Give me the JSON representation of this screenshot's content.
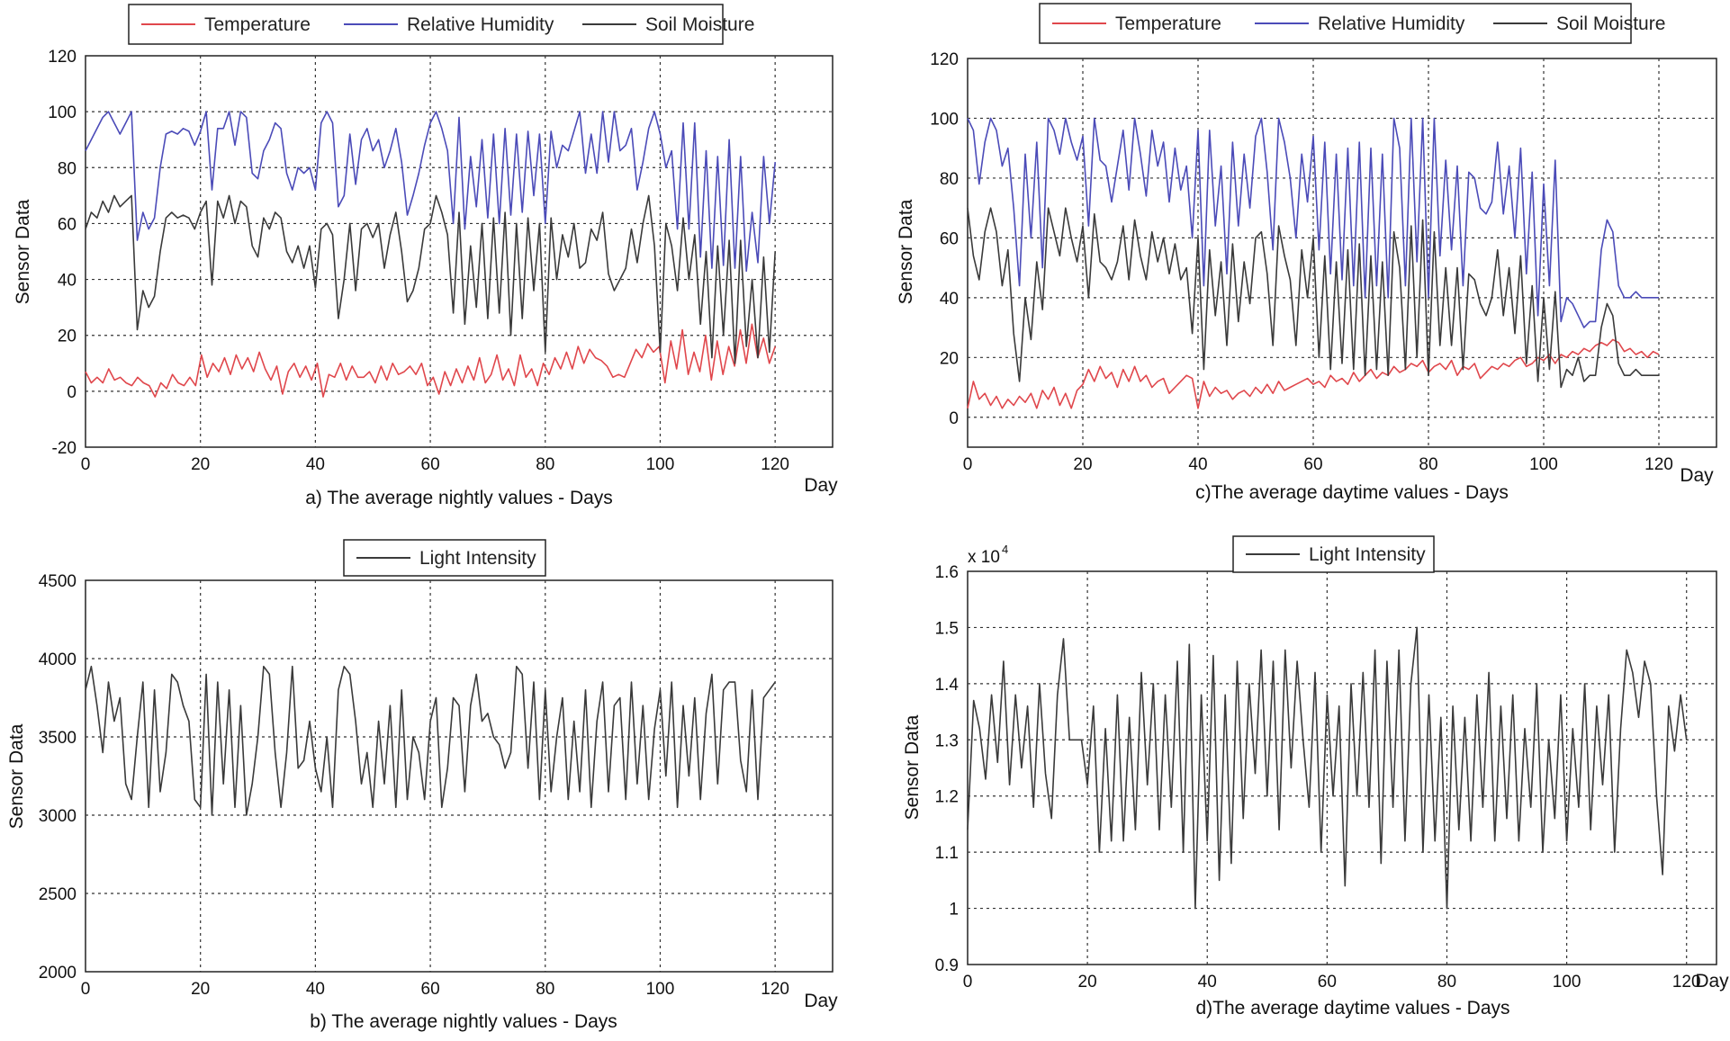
{
  "colors": {
    "temperature": "#e0474c",
    "humidity": "#4b4bb8",
    "soil": "#3a3a3a",
    "light": "#3a3a3a",
    "grid": "#333333"
  },
  "chart_data": [
    {
      "type": "line",
      "caption": "a) The average  nightly values - Days",
      "xlabel": "Day",
      "ylabel": "Sensor Data",
      "xlim": [
        0,
        130
      ],
      "ylim": [
        -20,
        120
      ],
      "xticks": [
        0,
        20,
        40,
        60,
        80,
        100,
        120
      ],
      "yticks": [
        -20,
        0,
        20,
        40,
        60,
        80,
        100,
        120
      ],
      "grid": true,
      "legend_position": "top",
      "series": [
        {
          "name": "Temperature",
          "values": [
            7,
            3,
            5,
            3,
            8,
            4,
            5,
            3,
            2,
            5,
            3,
            2,
            -2,
            3,
            1,
            6,
            3,
            2,
            5,
            2,
            13,
            5,
            10,
            7,
            12,
            6,
            13,
            8,
            12,
            7,
            14,
            8,
            4,
            9,
            -1,
            7,
            10,
            5,
            9,
            4,
            10,
            -2,
            6,
            5,
            10,
            4,
            9,
            5,
            5,
            7,
            3,
            9,
            4,
            10,
            6,
            7,
            9,
            6,
            10,
            2,
            5,
            -1,
            7,
            2,
            8,
            3,
            9,
            4,
            12,
            3,
            6,
            13,
            4,
            8,
            2,
            13,
            5,
            8,
            2,
            10,
            6,
            12,
            8,
            14,
            8,
            16,
            10,
            15,
            12,
            11,
            9,
            5,
            6,
            5,
            10,
            15,
            12,
            17,
            14,
            16,
            3,
            18,
            8,
            22,
            6,
            14,
            7,
            20,
            4,
            18,
            6,
            16,
            9,
            22,
            10,
            24,
            12,
            19,
            10,
            16
          ]
        },
        {
          "name": "Relative Humidity",
          "values": [
            86,
            90,
            94,
            98,
            100,
            96,
            92,
            96,
            100,
            54,
            64,
            58,
            62,
            80,
            92,
            93,
            92,
            94,
            93,
            88,
            93,
            100,
            72,
            94,
            94,
            100,
            88,
            100,
            98,
            78,
            76,
            86,
            90,
            96,
            94,
            78,
            72,
            80,
            78,
            80,
            72,
            96,
            100,
            96,
            66,
            70,
            92,
            74,
            90,
            94,
            86,
            90,
            80,
            86,
            94,
            82,
            63,
            70,
            78,
            88,
            96,
            100,
            94,
            86,
            60,
            98,
            58,
            84,
            66,
            90,
            62,
            92,
            60,
            94,
            63,
            92,
            64,
            93,
            70,
            92,
            60,
            93,
            80,
            88,
            86,
            93,
            100,
            78,
            92,
            78,
            100,
            82,
            100,
            86,
            88,
            94,
            72,
            82,
            94,
            100,
            92,
            80,
            86,
            58,
            96,
            58,
            96,
            48,
            86,
            44,
            84,
            45,
            90,
            44,
            84,
            43,
            64,
            46,
            84,
            60,
            82
          ]
        },
        {
          "name": "Soil Moisture",
          "values": [
            58,
            64,
            62,
            68,
            64,
            70,
            66,
            68,
            70,
            22,
            36,
            30,
            34,
            50,
            62,
            64,
            62,
            63,
            62,
            58,
            64,
            68,
            38,
            68,
            62,
            70,
            60,
            68,
            66,
            52,
            48,
            62,
            58,
            64,
            62,
            50,
            46,
            52,
            44,
            52,
            37,
            58,
            60,
            56,
            26,
            40,
            60,
            36,
            58,
            60,
            55,
            60,
            44,
            56,
            64,
            50,
            32,
            36,
            44,
            58,
            60,
            70,
            64,
            56,
            28,
            64,
            24,
            52,
            30,
            60,
            26,
            62,
            28,
            64,
            20,
            60,
            26,
            62,
            36,
            60,
            14,
            62,
            40,
            56,
            48,
            60,
            44,
            46,
            58,
            54,
            64,
            42,
            36,
            40,
            44,
            58,
            46,
            60,
            70,
            52,
            14,
            60,
            52,
            36,
            62,
            40,
            56,
            24,
            50,
            12,
            52,
            20,
            54,
            10,
            54,
            16,
            40,
            12,
            48,
            14,
            50
          ]
        }
      ]
    },
    {
      "type": "line",
      "caption": "c)The average daytime values - Days",
      "xlabel": "Day",
      "ylabel": "Sensor Data",
      "xlim": [
        0,
        130
      ],
      "ylim": [
        -10,
        120
      ],
      "xticks": [
        0,
        20,
        40,
        60,
        80,
        100,
        120
      ],
      "yticks": [
        0,
        20,
        40,
        60,
        80,
        100,
        120
      ],
      "grid": true,
      "legend_position": "top",
      "series": [
        {
          "name": "Temperature",
          "values": [
            3,
            12,
            6,
            8,
            4,
            7,
            3,
            6,
            4,
            7,
            5,
            8,
            3,
            9,
            6,
            10,
            4,
            8,
            3,
            9,
            11,
            16,
            12,
            17,
            13,
            15,
            10,
            16,
            12,
            17,
            12,
            14,
            10,
            12,
            13,
            8,
            10,
            12,
            14,
            13,
            3,
            12,
            7,
            10,
            8,
            9,
            6,
            8,
            9,
            7,
            10,
            8,
            11,
            8,
            12,
            9,
            10,
            11,
            12,
            13,
            11,
            12,
            10,
            14,
            12,
            13,
            11,
            15,
            12,
            14,
            16,
            13,
            15,
            14,
            17,
            15,
            16,
            18,
            17,
            19,
            15,
            17,
            18,
            16,
            19,
            14,
            17,
            16,
            18,
            13,
            15,
            17,
            16,
            18,
            17,
            19,
            20,
            17,
            18,
            20,
            19,
            21,
            18,
            21,
            20,
            22,
            21,
            23,
            22,
            24,
            25,
            24,
            26,
            25,
            22,
            23,
            21,
            22,
            20,
            22,
            21
          ]
        },
        {
          "name": "Relative Humidity",
          "values": [
            100,
            96,
            78,
            92,
            100,
            96,
            84,
            90,
            70,
            44,
            88,
            60,
            92,
            50,
            100,
            96,
            88,
            100,
            92,
            86,
            94,
            64,
            100,
            86,
            84,
            72,
            84,
            96,
            76,
            100,
            88,
            74,
            96,
            84,
            92,
            72,
            90,
            76,
            84,
            60,
            96,
            44,
            96,
            64,
            84,
            48,
            92,
            64,
            88,
            70,
            94,
            100,
            82,
            56,
            100,
            92,
            80,
            60,
            88,
            72,
            94,
            56,
            92,
            48,
            88,
            46,
            90,
            44,
            92,
            40,
            90,
            44,
            88,
            40,
            100,
            90,
            44,
            100,
            52,
            100,
            40,
            100,
            54,
            86,
            56,
            84,
            44,
            82,
            80,
            70,
            68,
            72,
            92,
            68,
            84,
            60,
            90,
            48,
            82,
            34,
            78,
            44,
            86,
            32,
            40,
            38,
            34,
            30,
            32,
            32,
            56,
            66,
            62,
            44,
            40,
            40,
            42,
            40,
            40,
            40,
            40
          ]
        },
        {
          "name": "Soil Moisture",
          "values": [
            70,
            54,
            46,
            62,
            70,
            62,
            44,
            56,
            28,
            12,
            40,
            26,
            52,
            36,
            70,
            62,
            54,
            70,
            60,
            52,
            64,
            40,
            68,
            52,
            50,
            46,
            52,
            64,
            46,
            66,
            54,
            46,
            62,
            52,
            60,
            48,
            58,
            46,
            50,
            28,
            60,
            16,
            56,
            34,
            52,
            24,
            58,
            32,
            52,
            38,
            60,
            62,
            48,
            24,
            64,
            54,
            46,
            24,
            56,
            40,
            60,
            20,
            54,
            16,
            52,
            18,
            56,
            16,
            58,
            14,
            54,
            16,
            52,
            14,
            62,
            50,
            16,
            64,
            20,
            66,
            14,
            62,
            24,
            50,
            24,
            50,
            16,
            48,
            46,
            38,
            34,
            40,
            56,
            34,
            50,
            28,
            54,
            18,
            44,
            12,
            40,
            16,
            42,
            10,
            16,
            14,
            20,
            12,
            14,
            14,
            30,
            38,
            34,
            18,
            14,
            14,
            16,
            14,
            14,
            14,
            14
          ]
        }
      ]
    },
    {
      "type": "line",
      "caption": "b) The average  nightly values - Days",
      "xlabel": "Day",
      "ylabel": "Sensor Data",
      "xlim": [
        0,
        130
      ],
      "ylim": [
        2000,
        4500
      ],
      "xticks": [
        0,
        20,
        40,
        60,
        80,
        100,
        120
      ],
      "yticks": [
        2000,
        2500,
        3000,
        3500,
        4000,
        4500
      ],
      "grid": true,
      "legend_position": "top",
      "series": [
        {
          "name": "Light Intensity",
          "values": [
            3800,
            3950,
            3700,
            3400,
            3850,
            3600,
            3750,
            3200,
            3100,
            3500,
            3850,
            3050,
            3800,
            3150,
            3400,
            3900,
            3850,
            3700,
            3600,
            3100,
            3050,
            3900,
            3000,
            3850,
            3200,
            3800,
            3050,
            3700,
            3000,
            3200,
            3500,
            3950,
            3900,
            3400,
            3050,
            3400,
            3950,
            3300,
            3350,
            3600,
            3300,
            3150,
            3500,
            3050,
            3800,
            3950,
            3900,
            3600,
            3200,
            3400,
            3050,
            3600,
            3200,
            3700,
            3050,
            3800,
            3100,
            3500,
            3400,
            3100,
            3600,
            3750,
            3050,
            3300,
            3750,
            3700,
            3150,
            3700,
            3900,
            3600,
            3650,
            3500,
            3450,
            3300,
            3400,
            3950,
            3900,
            3300,
            3850,
            3100,
            3800,
            3150,
            3500,
            3750,
            3100,
            3600,
            3150,
            3800,
            3050,
            3600,
            3850,
            3150,
            3700,
            3750,
            3100,
            3850,
            3200,
            3700,
            3100,
            3550,
            3800,
            3250,
            3850,
            3050,
            3700,
            3250,
            3750,
            3100,
            3650,
            3900,
            3200,
            3800,
            3850,
            3850,
            3350,
            3150,
            3800,
            3100,
            3750,
            3800,
            3850
          ]
        }
      ]
    },
    {
      "type": "line",
      "caption": "d)The average daytime values - Days",
      "xlabel": "Day",
      "ylabel": "Sensor Data",
      "scale_label": "x 10",
      "scale_exponent": "4",
      "xlim": [
        0,
        125
      ],
      "ylim": [
        0.9,
        1.6
      ],
      "xticks": [
        0,
        20,
        40,
        60,
        80,
        100,
        120
      ],
      "yticks": [
        0.9,
        1,
        1.1,
        1.2,
        1.3,
        1.4,
        1.5,
        1.6
      ],
      "ytick_labels": [
        "0.9",
        "1",
        "1.1",
        "1.2",
        "1.3",
        "1.4",
        "1.5",
        "1.6"
      ],
      "grid": true,
      "legend_position": "top",
      "series": [
        {
          "name": "Light Intensity",
          "values": [
            1.14,
            1.37,
            1.32,
            1.23,
            1.38,
            1.26,
            1.44,
            1.22,
            1.38,
            1.25,
            1.36,
            1.18,
            1.4,
            1.24,
            1.16,
            1.38,
            1.48,
            1.3,
            1.3,
            1.3,
            1.22,
            1.36,
            1.1,
            1.32,
            1.12,
            1.38,
            1.12,
            1.34,
            1.14,
            1.42,
            1.22,
            1.4,
            1.14,
            1.38,
            1.18,
            1.44,
            1.1,
            1.47,
            1.0,
            1.38,
            1.12,
            1.45,
            1.05,
            1.38,
            1.08,
            1.44,
            1.16,
            1.4,
            1.24,
            1.46,
            1.2,
            1.44,
            1.14,
            1.46,
            1.25,
            1.44,
            1.3,
            1.18,
            1.42,
            1.1,
            1.38,
            1.2,
            1.36,
            1.04,
            1.4,
            1.2,
            1.42,
            1.18,
            1.46,
            1.08,
            1.44,
            1.18,
            1.46,
            1.12,
            1.4,
            1.5,
            1.1,
            1.38,
            1.12,
            1.34,
            1.0,
            1.36,
            1.14,
            1.34,
            1.12,
            1.38,
            1.18,
            1.42,
            1.12,
            1.36,
            1.16,
            1.38,
            1.12,
            1.32,
            1.18,
            1.4,
            1.1,
            1.3,
            1.16,
            1.38,
            1.12,
            1.32,
            1.18,
            1.4,
            1.14,
            1.36,
            1.22,
            1.38,
            1.1,
            1.32,
            1.46,
            1.42,
            1.34,
            1.44,
            1.4,
            1.2,
            1.06,
            1.36,
            1.28,
            1.38,
            1.3
          ]
        }
      ]
    }
  ]
}
